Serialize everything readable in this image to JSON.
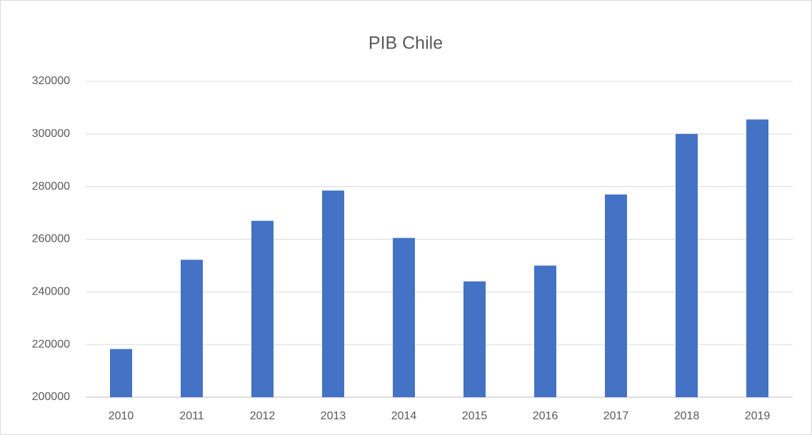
{
  "chart_data": {
    "type": "bar",
    "title": "PIB Chile",
    "categories": [
      "2010",
      "2011",
      "2012",
      "2013",
      "2014",
      "2015",
      "2016",
      "2017",
      "2018",
      "2019"
    ],
    "values": [
      218300,
      252200,
      267000,
      278500,
      260500,
      244000,
      250000,
      277000,
      300000,
      305500
    ],
    "color": "#4472c4",
    "ylim": [
      200000,
      320000
    ],
    "yticks": [
      200000,
      220000,
      240000,
      260000,
      280000,
      300000,
      320000
    ],
    "grid": true
  }
}
